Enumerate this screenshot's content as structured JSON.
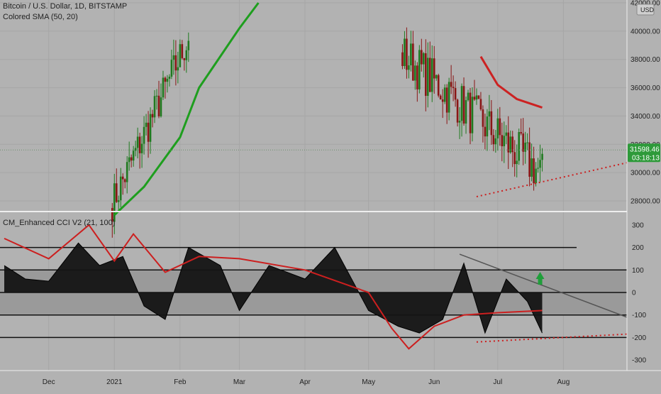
{
  "header": {
    "symbol_line": "Bitcoin / U.S. Dollar, 1D, BITSTAMP",
    "indicator_line": "Colored SMA (50, 20)",
    "currency_badge": "USD"
  },
  "lower_pane": {
    "legend": "CM_Enhanced CCI V2 (21, 100)"
  },
  "price_tag": {
    "price": "31598.46",
    "countdown": "03:18:13"
  },
  "colors": {
    "background": "#b2b2b2",
    "grid": "#a6a6a6",
    "candle_up": "#1f7a1f",
    "candle_down": "#8a1515",
    "sma_slow": "#1e9e1e",
    "sma_fast": "#cc2222",
    "cci_fill": "#141414",
    "cci_signal": "#cc1f1f",
    "band_mid": "#9a9a9a",
    "price_tag": "#2e9a3a",
    "arrow_up": "#1f9e3a"
  },
  "chart_data": [
    {
      "type": "candlestick",
      "title": "Bitcoin / U.S. Dollar, 1D, BITSTAMP",
      "x_ticks": [
        "Dec",
        "2021",
        "Feb",
        "Mar",
        "Apr",
        "May",
        "Jun",
        "Jul",
        "Aug"
      ],
      "y_ticks": [
        "42000.00",
        "40000.00",
        "38000.00",
        "36000.00",
        "34000.00",
        "32000.00",
        "30000.00",
        "28000.00"
      ],
      "ylim": [
        27000,
        42000
      ],
      "last_price": 31598.46,
      "note_visible_segments": "candles visible Jan–Feb 2021 and May–Jul 2021; middle section above chart range",
      "series": [
        {
          "name": "Colored SMA (50, 20)",
          "x": [
            "2021-01-01",
            "2021-01-15",
            "2021-02-01",
            "2021-02-10",
            "2021-03-01",
            "2021-03-10"
          ],
          "y": [
            27000,
            29000,
            32500,
            36000,
            40200,
            42000
          ]
        },
        {
          "name": "Colored SMA (50, 20)",
          "x": [
            "2021-06-23",
            "2021-07-01",
            "2021-07-10",
            "2021-07-22"
          ],
          "y": [
            38200,
            36200,
            35200,
            34600
          ]
        }
      ],
      "annotations": [
        {
          "kind": "trendline",
          "style": "dotted",
          "color": "#cc1f1f",
          "from": [
            "2021-06-21",
            28300
          ],
          "to": [
            "2021-08-31",
            30700
          ]
        }
      ]
    },
    {
      "type": "area",
      "title": "CM_Enhanced CCI V2 (21, 100)",
      "y_ticks": [
        "300",
        "200",
        "100",
        "0",
        "-100",
        "-200",
        "-300"
      ],
      "ylim": [
        -350,
        330
      ],
      "levels": [
        200,
        100,
        0,
        -100,
        -200
      ],
      "bands": [
        [
          0,
          100,
          "#9a9a9a"
        ],
        [
          -100,
          0,
          "#9a9a9a"
        ]
      ],
      "series": [
        {
          "name": "CCI",
          "x": [
            "2020-11-10",
            "2020-11-20",
            "2020-12-01",
            "2020-12-15",
            "2020-12-25",
            "2021-01-05",
            "2021-01-15",
            "2021-01-25",
            "2021-02-05",
            "2021-02-20",
            "2021-03-01",
            "2021-03-15",
            "2021-04-01",
            "2021-04-15",
            "2021-05-01",
            "2021-05-15",
            "2021-05-25",
            "2021-06-05",
            "2021-06-15",
            "2021-06-25",
            "2021-07-05",
            "2021-07-15",
            "2021-07-22"
          ],
          "y": [
            120,
            60,
            50,
            220,
            120,
            160,
            -60,
            -120,
            200,
            120,
            -80,
            120,
            60,
            200,
            -80,
            -150,
            -180,
            -120,
            130,
            -180,
            60,
            -40,
            -180
          ]
        },
        {
          "name": "Signal",
          "x": [
            "2020-11-10",
            "2020-12-01",
            "2020-12-20",
            "2021-01-01",
            "2021-01-10",
            "2021-01-25",
            "2021-02-10",
            "2021-03-01",
            "2021-04-01",
            "2021-05-01",
            "2021-05-12",
            "2021-05-20",
            "2021-06-01",
            "2021-06-15",
            "2021-07-01",
            "2021-07-22"
          ],
          "y": [
            240,
            150,
            300,
            140,
            260,
            90,
            160,
            150,
            100,
            0,
            -160,
            -250,
            -150,
            -100,
            -90,
            -80
          ]
        }
      ],
      "annotations": [
        {
          "kind": "trendline",
          "color": "#555555",
          "from": [
            "2021-06-13",
            170
          ],
          "to": [
            "2021-08-31",
            -110
          ]
        },
        {
          "kind": "trendline",
          "style": "dotted",
          "color": "#cc1f1f",
          "from": [
            "2021-06-21",
            -220
          ],
          "to": [
            "2021-08-31",
            -185
          ]
        },
        {
          "kind": "arrow",
          "direction": "up",
          "at": [
            "2021-07-21",
            60
          ]
        }
      ]
    }
  ]
}
